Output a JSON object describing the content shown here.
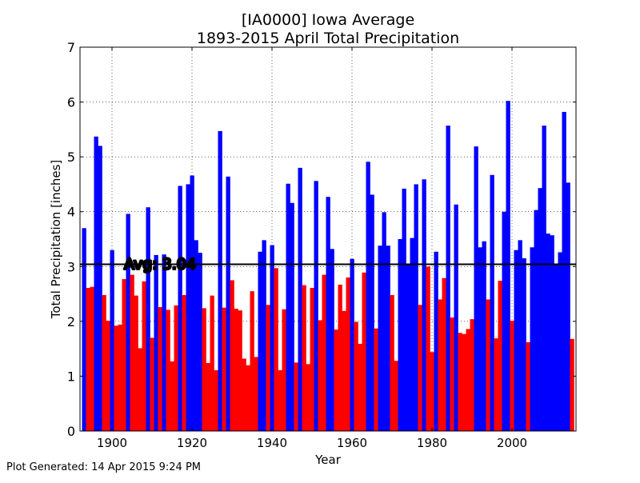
{
  "footer": {
    "generated": "Plot Generated: 14 Apr 2015 9:24 PM"
  },
  "chart_data": {
    "type": "bar",
    "title": "[IA0000] Iowa Average",
    "subtitle": "1893-2015 April Total Precipitation",
    "xlabel": "Year",
    "ylabel": "Total Precipitation [inches]",
    "xlim": [
      1892,
      2016
    ],
    "ylim": [
      0,
      7
    ],
    "xticks": [
      1900,
      1920,
      1940,
      1960,
      1980,
      2000
    ],
    "yticks": [
      0,
      1,
      2,
      3,
      4,
      5,
      6,
      7
    ],
    "grid": true,
    "average": 3.04,
    "average_label": "Avg: 3.04",
    "colors": {
      "above": "#0000ff",
      "below": "#ff0000",
      "average_line": "#000000",
      "average_label_text": "#ffff00"
    },
    "years": [
      1893,
      1894,
      1895,
      1896,
      1897,
      1898,
      1899,
      1900,
      1901,
      1902,
      1903,
      1904,
      1905,
      1906,
      1907,
      1908,
      1909,
      1910,
      1911,
      1912,
      1913,
      1914,
      1915,
      1916,
      1917,
      1918,
      1919,
      1920,
      1921,
      1922,
      1923,
      1924,
      1925,
      1926,
      1927,
      1928,
      1929,
      1930,
      1931,
      1932,
      1933,
      1934,
      1935,
      1936,
      1937,
      1938,
      1939,
      1940,
      1941,
      1942,
      1943,
      1944,
      1945,
      1946,
      1947,
      1948,
      1949,
      1950,
      1951,
      1952,
      1953,
      1954,
      1955,
      1956,
      1957,
      1958,
      1959,
      1960,
      1961,
      1962,
      1963,
      1964,
      1965,
      1966,
      1967,
      1968,
      1969,
      1970,
      1971,
      1972,
      1973,
      1974,
      1975,
      1976,
      1977,
      1978,
      1979,
      1980,
      1981,
      1982,
      1983,
      1984,
      1985,
      1986,
      1987,
      1988,
      1989,
      1990,
      1991,
      1992,
      1993,
      1994,
      1995,
      1996,
      1997,
      1998,
      1999,
      2000,
      2001,
      2002,
      2003,
      2004,
      2005,
      2006,
      2007,
      2008,
      2009,
      2010,
      2011,
      2012,
      2013,
      2014,
      2015
    ],
    "values": [
      3.7,
      2.61,
      2.63,
      5.37,
      5.2,
      2.48,
      2.01,
      3.3,
      1.92,
      1.94,
      2.77,
      3.96,
      2.85,
      2.47,
      1.51,
      2.73,
      4.08,
      1.7,
      3.21,
      2.26,
      3.22,
      2.21,
      1.27,
      2.29,
      4.47,
      2.48,
      4.5,
      4.66,
      3.48,
      3.25,
      2.24,
      1.24,
      2.47,
      1.11,
      5.47,
      2.25,
      4.64,
      2.75,
      2.23,
      2.2,
      1.32,
      1.2,
      2.55,
      1.35,
      3.27,
      3.48,
      2.3,
      3.39,
      2.97,
      1.11,
      2.22,
      4.51,
      4.16,
      1.25,
      4.8,
      2.66,
      1.22,
      2.61,
      4.56,
      2.02,
      2.85,
      4.27,
      3.32,
      1.85,
      2.67,
      2.19,
      2.8,
      3.14,
      1.99,
      1.59,
      2.89,
      4.91,
      4.31,
      1.87,
      3.38,
      3.99,
      3.38,
      2.48,
      1.28,
      3.5,
      4.42,
      3.04,
      3.52,
      4.5,
      2.3,
      4.59,
      3.0,
      1.44,
      3.27,
      2.4,
      2.79,
      5.57,
      2.07,
      4.13,
      1.79,
      1.77,
      1.86,
      2.04,
      5.19,
      3.35,
      3.46,
      2.4,
      4.67,
      1.69,
      2.74,
      4.0,
      6.02,
      2.01,
      3.3,
      3.48,
      3.15,
      1.62,
      3.35,
      4.03,
      4.43,
      5.57,
      3.6,
      3.57,
      3.05,
      3.26,
      5.82,
      4.53,
      1.68
    ]
  }
}
